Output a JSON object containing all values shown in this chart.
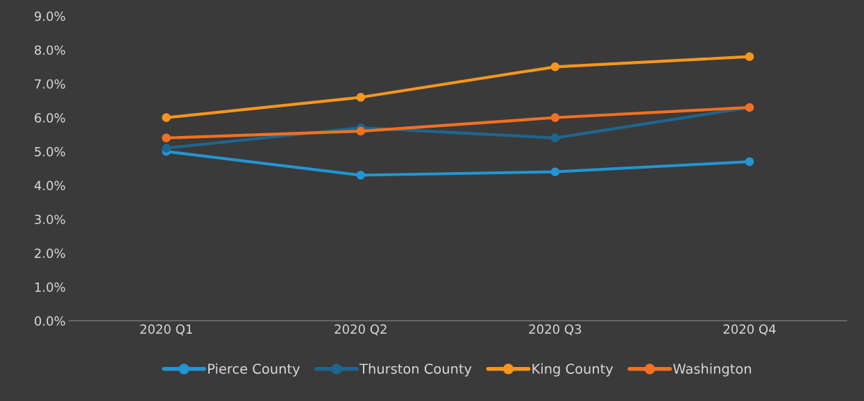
{
  "chart_data": {
    "type": "line",
    "categories": [
      "2020 Q1",
      "2020 Q2",
      "2020 Q3",
      "2020 Q4"
    ],
    "series": [
      {
        "name": "Pierce County",
        "color": "#2196d3",
        "values": [
          5.0,
          4.3,
          4.4,
          4.7
        ]
      },
      {
        "name": "Thurston County",
        "color": "#1d6690",
        "values": [
          5.1,
          5.7,
          5.4,
          6.3
        ]
      },
      {
        "name": "King County",
        "color": "#f7961d",
        "values": [
          6.0,
          6.6,
          7.5,
          7.8
        ]
      },
      {
        "name": "Washington",
        "color": "#f37021",
        "values": [
          5.4,
          5.6,
          6.0,
          6.3
        ]
      }
    ],
    "ylim": [
      0,
      9
    ],
    "yticks": [
      {
        "value": 0,
        "label": "0.0%"
      },
      {
        "value": 1,
        "label": "1.0%"
      },
      {
        "value": 2,
        "label": "2.0%"
      },
      {
        "value": 3,
        "label": "3.0%"
      },
      {
        "value": 4,
        "label": "4.0%"
      },
      {
        "value": 5,
        "label": "5.0%"
      },
      {
        "value": 6,
        "label": "6.0%"
      },
      {
        "value": 7,
        "label": "7.0%"
      },
      {
        "value": 8,
        "label": "8.0%"
      },
      {
        "value": 9,
        "label": "9.0%"
      }
    ],
    "grid": false,
    "legend": "bottom",
    "marker": "circle",
    "line_style": "solid"
  }
}
